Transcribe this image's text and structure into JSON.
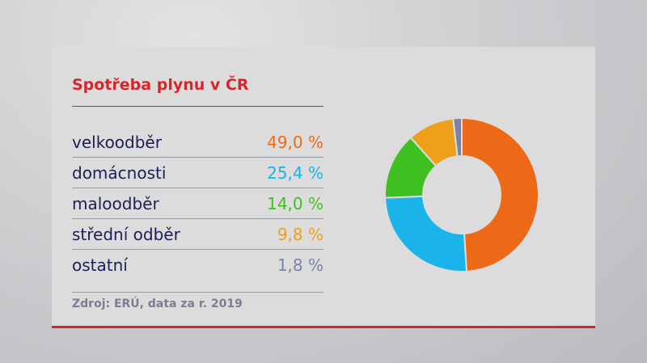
{
  "chart_data": {
    "type": "pie",
    "donut": true,
    "title": "Spotřeba plynu v ČR",
    "categories": [
      "velkoodběr",
      "domácnosti",
      "maloodběr",
      "střední odběr",
      "ostatní"
    ],
    "values": [
      49.0,
      25.4,
      14.0,
      9.8,
      1.8
    ],
    "value_labels": [
      "49,0 %",
      "25,4 %",
      "14,0 %",
      "9,8 %",
      "1,8 %"
    ],
    "colors": [
      "#ec6a17",
      "#1ab3ea",
      "#3fc021",
      "#eea01c",
      "#7b82a8"
    ],
    "source": "Zdroj: ERÚ, data za r. 2019"
  }
}
